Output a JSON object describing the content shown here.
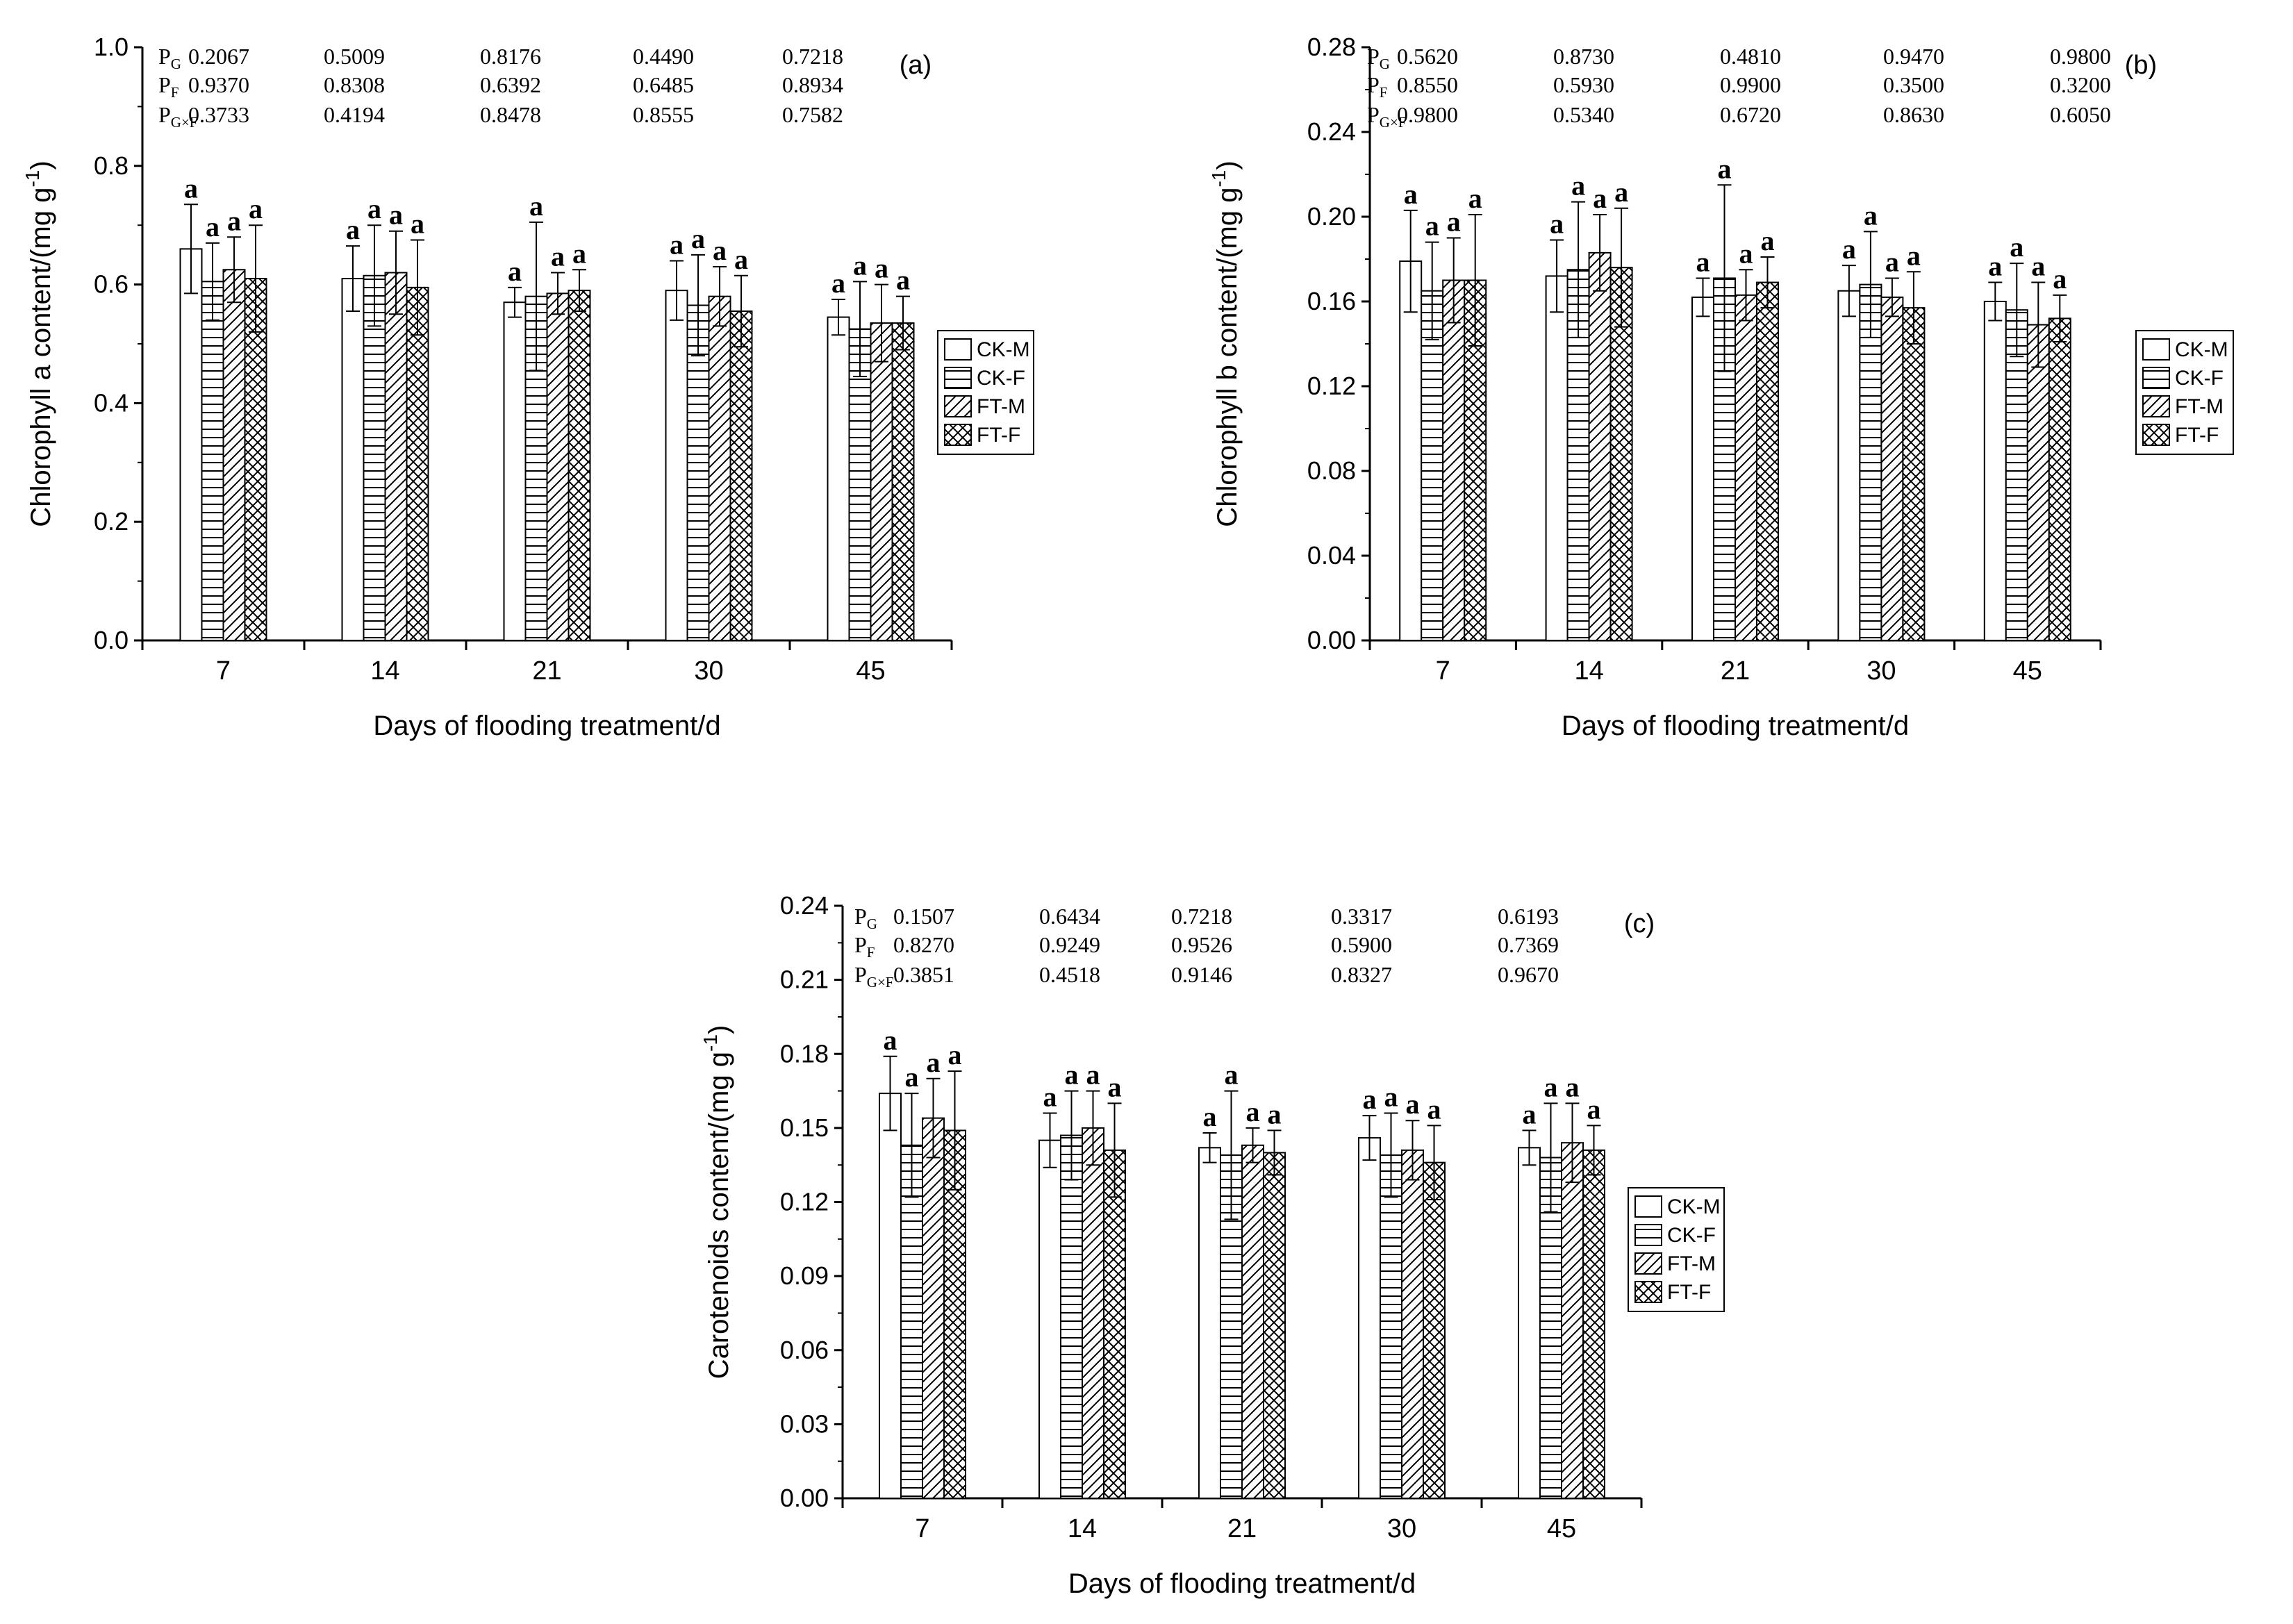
{
  "legend": {
    "entries": [
      {
        "label": "CK-M",
        "pattern": "none"
      },
      {
        "label": "CK-F",
        "pattern": "horizontal-lines"
      },
      {
        "label": "FT-M",
        "pattern": "diagonal-lines"
      },
      {
        "label": "FT-F",
        "pattern": "crosshatch"
      }
    ]
  },
  "chart_data": [
    {
      "panel": "(a)",
      "type": "bar",
      "title": "",
      "xlabel": "Days of flooding treatment/d",
      "ylabel_prefix": "Chlorophyll a content/(mg g",
      "ylabel_superscript": "-1",
      "ylabel_suffix": ")",
      "ylim": [
        0,
        1.0
      ],
      "yticks": [
        0.0,
        0.2,
        0.4,
        0.6,
        0.8,
        1.0
      ],
      "ytick_labels": [
        "0.0",
        "0.2",
        "0.4",
        "0.6",
        "0.8",
        "1.0"
      ],
      "categories": [
        "7",
        "14",
        "21",
        "30",
        "45"
      ],
      "series": [
        {
          "name": "CK-M",
          "values": [
            0.66,
            0.61,
            0.57,
            0.59,
            0.545
          ],
          "errors": [
            0.075,
            0.055,
            0.025,
            0.05,
            0.03
          ],
          "letters": [
            "a",
            "a",
            "a",
            "a",
            "a"
          ]
        },
        {
          "name": "CK-F",
          "values": [
            0.605,
            0.615,
            0.58,
            0.565,
            0.525
          ],
          "errors": [
            0.065,
            0.085,
            0.125,
            0.085,
            0.08
          ],
          "letters": [
            "a",
            "a",
            "a",
            "a",
            "a"
          ]
        },
        {
          "name": "FT-M",
          "values": [
            0.625,
            0.62,
            0.585,
            0.58,
            0.535
          ],
          "errors": [
            0.055,
            0.07,
            0.035,
            0.05,
            0.065
          ],
          "letters": [
            "a",
            "a",
            "a",
            "a",
            "a"
          ]
        },
        {
          "name": "FT-F",
          "values": [
            0.61,
            0.595,
            0.59,
            0.555,
            0.535
          ],
          "errors": [
            0.09,
            0.08,
            0.035,
            0.06,
            0.045
          ],
          "letters": [
            "a",
            "a",
            "a",
            "a",
            "a"
          ]
        }
      ],
      "stats": {
        "rows": [
          {
            "label": "P",
            "sub": "G",
            "values": [
              "0.2067",
              "0.5009",
              "0.8176",
              "0.4490",
              "0.7218"
            ]
          },
          {
            "label": "P",
            "sub": "F",
            "values": [
              "0.9370",
              "0.8308",
              "0.6392",
              "0.6485",
              "0.8934"
            ]
          },
          {
            "label": "P",
            "sub": "G×F",
            "values": [
              "0.3733",
              "0.4194",
              "0.8478",
              "0.8555",
              "0.7582"
            ]
          }
        ]
      }
    },
    {
      "panel": "(b)",
      "type": "bar",
      "title": "",
      "xlabel": "Days of flooding treatment/d",
      "ylabel_prefix": "Chlorophyll b content/(mg g",
      "ylabel_superscript": "-1",
      "ylabel_suffix": ")",
      "ylim": [
        0,
        0.28
      ],
      "yticks": [
        0.0,
        0.04,
        0.08,
        0.12,
        0.16,
        0.2,
        0.24,
        0.28
      ],
      "ytick_labels": [
        "0.00",
        "0.04",
        "0.08",
        "0.12",
        "0.16",
        "0.20",
        "0.24",
        "0.28"
      ],
      "categories": [
        "7",
        "14",
        "21",
        "30",
        "45"
      ],
      "series": [
        {
          "name": "CK-M",
          "values": [
            0.179,
            0.172,
            0.162,
            0.165,
            0.16
          ],
          "errors": [
            0.024,
            0.017,
            0.009,
            0.012,
            0.009
          ],
          "letters": [
            "a",
            "a",
            "a",
            "a",
            "a"
          ]
        },
        {
          "name": "CK-F",
          "values": [
            0.165,
            0.175,
            0.171,
            0.168,
            0.156
          ],
          "errors": [
            0.023,
            0.032,
            0.044,
            0.025,
            0.022
          ],
          "letters": [
            "a",
            "a",
            "a",
            "a",
            "a"
          ]
        },
        {
          "name": "FT-M",
          "values": [
            0.17,
            0.183,
            0.163,
            0.162,
            0.149
          ],
          "errors": [
            0.02,
            0.018,
            0.012,
            0.009,
            0.02
          ],
          "letters": [
            "a",
            "a",
            "a",
            "a",
            "a"
          ]
        },
        {
          "name": "FT-F",
          "values": [
            0.17,
            0.176,
            0.169,
            0.157,
            0.152
          ],
          "errors": [
            0.031,
            0.028,
            0.012,
            0.017,
            0.011
          ],
          "letters": [
            "a",
            "a",
            "a",
            "a",
            "a"
          ]
        }
      ],
      "stats": {
        "rows": [
          {
            "label": "P",
            "sub": "G",
            "values": [
              "0.5620",
              "0.8730",
              "0.4810",
              "0.9470",
              "0.9800"
            ]
          },
          {
            "label": "P",
            "sub": "F",
            "values": [
              "0.8550",
              "0.5930",
              "0.9900",
              "0.3500",
              "0.3200"
            ]
          },
          {
            "label": "P",
            "sub": "G×F",
            "values": [
              "0.9800",
              "0.5340",
              "0.6720",
              "0.8630",
              "0.6050"
            ]
          }
        ]
      }
    },
    {
      "panel": "(c)",
      "type": "bar",
      "title": "",
      "xlabel": "Days of flooding treatment/d",
      "ylabel_prefix": "Carotenoids content/(mg g",
      "ylabel_superscript": "-1",
      "ylabel_suffix": ")",
      "ylim": [
        0,
        0.24
      ],
      "yticks": [
        0.0,
        0.03,
        0.06,
        0.09,
        0.12,
        0.15,
        0.18,
        0.21,
        0.24
      ],
      "ytick_labels": [
        "0.00",
        "0.03",
        "0.06",
        "0.09",
        "0.12",
        "0.15",
        "0.18",
        "0.21",
        "0.24"
      ],
      "categories": [
        "7",
        "14",
        "21",
        "30",
        "45"
      ],
      "series": [
        {
          "name": "CK-M",
          "values": [
            0.164,
            0.145,
            0.142,
            0.146,
            0.142
          ],
          "errors": [
            0.015,
            0.011,
            0.006,
            0.009,
            0.007
          ],
          "letters": [
            "a",
            "a",
            "a",
            "a",
            "a"
          ]
        },
        {
          "name": "CK-F",
          "values": [
            0.143,
            0.147,
            0.139,
            0.139,
            0.138
          ],
          "errors": [
            0.021,
            0.018,
            0.026,
            0.017,
            0.022
          ],
          "letters": [
            "a",
            "a",
            "a",
            "a",
            "a"
          ]
        },
        {
          "name": "FT-M",
          "values": [
            0.154,
            0.15,
            0.143,
            0.141,
            0.144
          ],
          "errors": [
            0.016,
            0.015,
            0.007,
            0.012,
            0.016
          ],
          "letters": [
            "a",
            "a",
            "a",
            "a",
            "a"
          ]
        },
        {
          "name": "FT-F",
          "values": [
            0.149,
            0.141,
            0.14,
            0.136,
            0.141
          ],
          "errors": [
            0.024,
            0.019,
            0.009,
            0.015,
            0.01
          ],
          "letters": [
            "a",
            "a",
            "a",
            "a",
            "a"
          ]
        }
      ],
      "stats": {
        "rows": [
          {
            "label": "P",
            "sub": "G",
            "values": [
              "0.1507",
              "0.6434",
              "0.7218",
              "0.3317",
              "0.6193"
            ]
          },
          {
            "label": "P",
            "sub": "F",
            "values": [
              "0.8270",
              "0.9249",
              "0.9526",
              "0.5900",
              "0.7369"
            ]
          },
          {
            "label": "P",
            "sub": "G×F",
            "values": [
              "0.3851",
              "0.4518",
              "0.9146",
              "0.8327",
              "0.9670"
            ]
          }
        ]
      }
    }
  ]
}
